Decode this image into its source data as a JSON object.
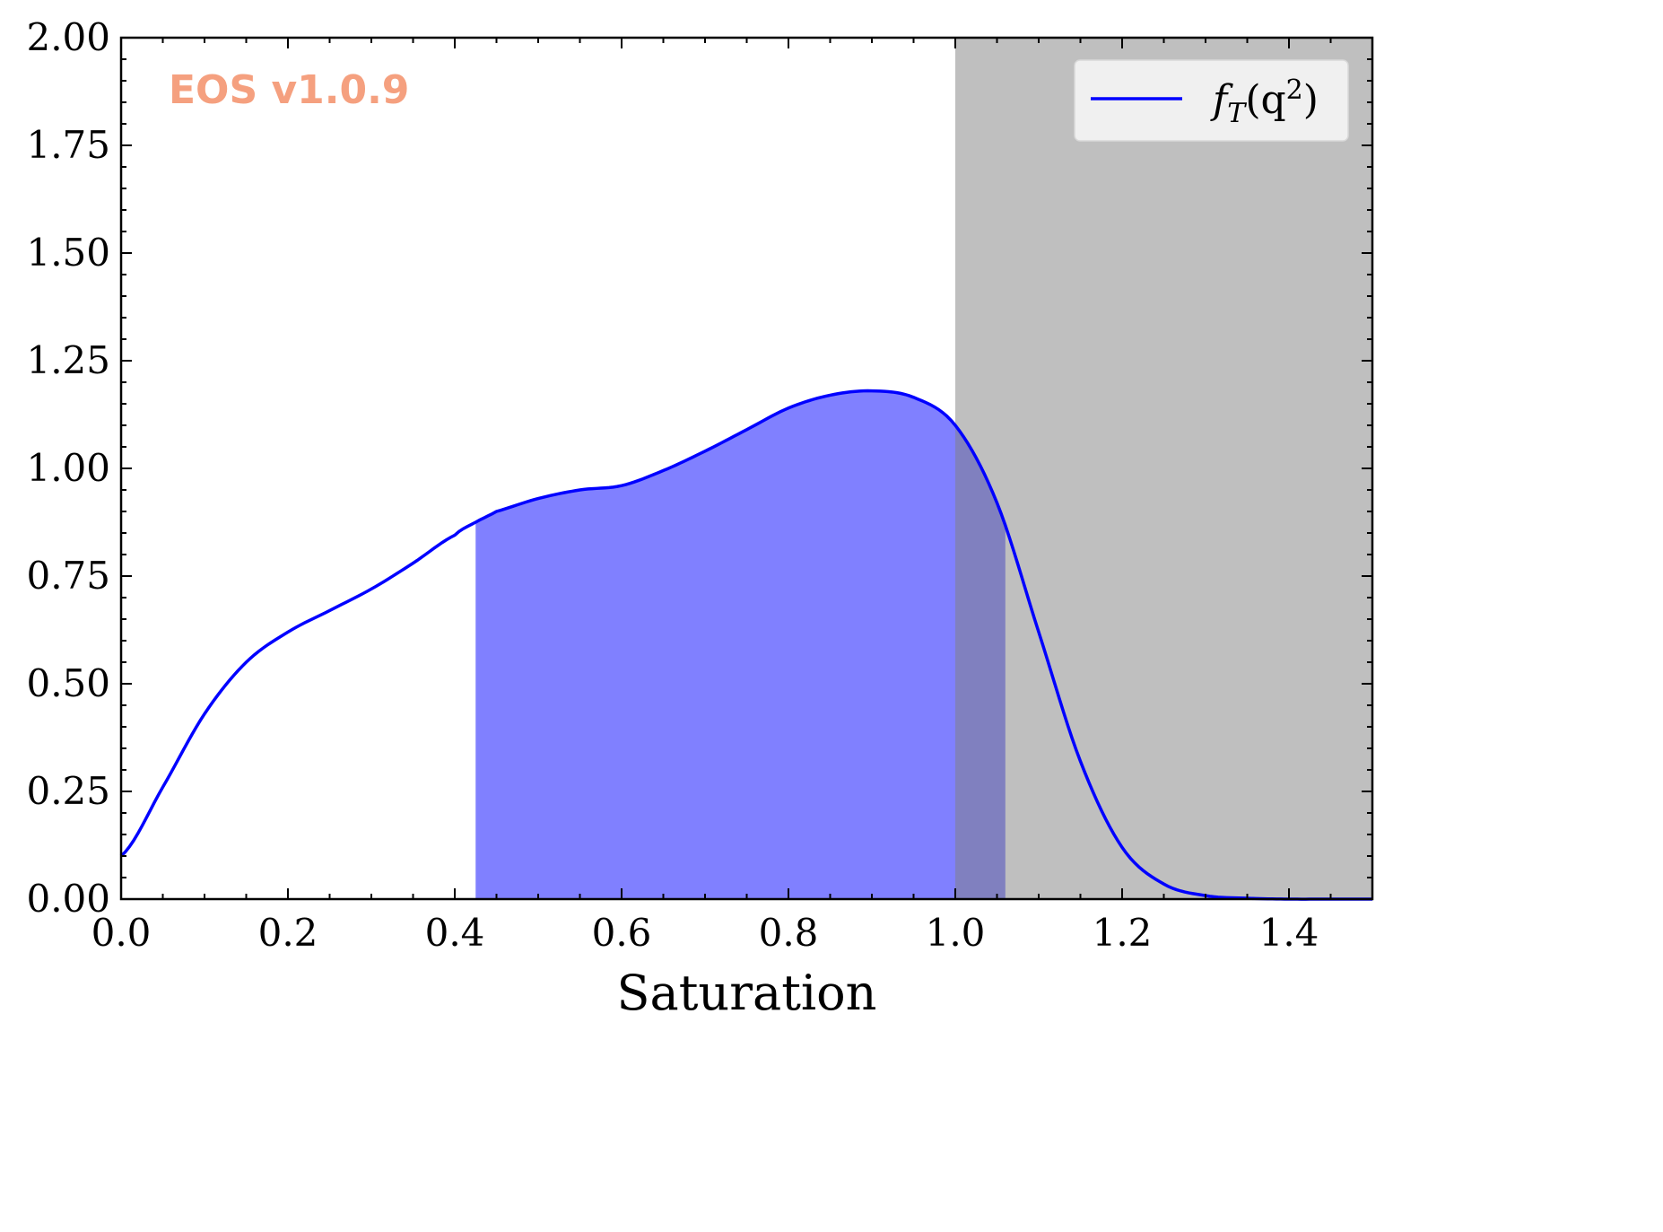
{
  "watermark": "EOS v1.0.9",
  "colors": {
    "line": "#0000ff",
    "fill": "#8080ff",
    "shade": "#bfbfbf",
    "watermark": "#f5a07f",
    "legend_bg": "#f0f0f0"
  },
  "chart_data": {
    "type": "line",
    "xlabel": "Saturation",
    "ylabel": "",
    "xlim": [
      0.0,
      1.5
    ],
    "ylim": [
      0.0,
      2.0
    ],
    "x_ticks": [
      "0.0",
      "0.2",
      "0.4",
      "0.6",
      "0.8",
      "1.0",
      "1.2",
      "1.4"
    ],
    "y_ticks": [
      "0.00",
      "0.25",
      "0.50",
      "0.75",
      "1.00",
      "1.25",
      "1.50",
      "1.75",
      "2.00"
    ],
    "legend_position": "top-right",
    "legend": {
      "label_base": "f",
      "label_sub": "T",
      "label_rest": "(q",
      "label_sup": "2",
      "label_end": ")"
    },
    "series": [
      {
        "name": "f_T(q^2)",
        "x": [
          0.0,
          0.05,
          0.1,
          0.15,
          0.2,
          0.25,
          0.3,
          0.35,
          0.4,
          0.425,
          0.45,
          0.5,
          0.55,
          0.6,
          0.65,
          0.7,
          0.75,
          0.8,
          0.85,
          0.9,
          0.95,
          1.0,
          1.05,
          1.1,
          1.15,
          1.2,
          1.25,
          1.3,
          1.35,
          1.4,
          1.45,
          1.5
        ],
        "y": [
          0.1,
          0.26,
          0.43,
          0.55,
          0.62,
          0.67,
          0.72,
          0.78,
          0.845,
          0.875,
          0.9,
          0.93,
          0.95,
          0.96,
          0.995,
          1.04,
          1.09,
          1.14,
          1.17,
          1.18,
          1.165,
          1.1,
          0.92,
          0.62,
          0.32,
          0.12,
          0.035,
          0.008,
          0.002,
          0.0,
          0.0,
          0.0
        ]
      }
    ],
    "fill_region": {
      "x_start": 0.425,
      "x_end": 1.06
    },
    "shaded_region": {
      "x_start": 1.0,
      "x_end": 1.5
    }
  }
}
